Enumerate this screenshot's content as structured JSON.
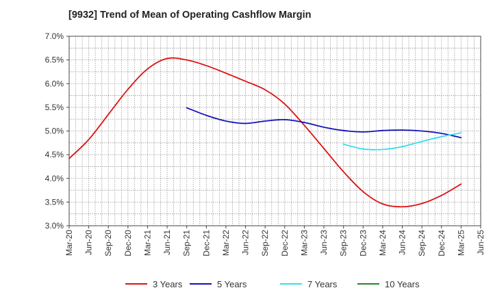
{
  "chart_data": {
    "type": "line",
    "title": "[9932]  Trend of Mean of Operating Cashflow Margin",
    "xlabel": "",
    "ylabel": "",
    "ylim": [
      3.0,
      7.0
    ],
    "y_ticks": [
      "3.0%",
      "3.5%",
      "4.0%",
      "4.5%",
      "5.0%",
      "5.5%",
      "6.0%",
      "6.5%",
      "7.0%"
    ],
    "x_tick_labels": [
      "Mar-20",
      "Jun-20",
      "Sep-20",
      "Dec-20",
      "Mar-21",
      "Jun-21",
      "Sep-21",
      "Dec-21",
      "Mar-22",
      "Jun-22",
      "Sep-22",
      "Dec-22",
      "Mar-23",
      "Jun-23",
      "Sep-23",
      "Dec-23",
      "Mar-24",
      "Jun-24",
      "Sep-24",
      "Dec-24",
      "Mar-25",
      "Jun-25"
    ],
    "x_range_quarters": [
      0,
      21
    ],
    "grid": true,
    "legend_position": "bottom",
    "series": [
      {
        "name": "3 Years",
        "color": "#dd1111",
        "points": [
          [
            "Mar-20",
            4.42
          ],
          [
            "Jun-20",
            4.82
          ],
          [
            "Sep-20",
            5.35
          ],
          [
            "Dec-20",
            5.88
          ],
          [
            "Mar-21",
            6.31
          ],
          [
            "Jun-21",
            6.53
          ],
          [
            "Sep-21",
            6.5
          ],
          [
            "Dec-21",
            6.38
          ],
          [
            "Mar-22",
            6.22
          ],
          [
            "Jun-22",
            6.05
          ],
          [
            "Sep-22",
            5.87
          ],
          [
            "Dec-22",
            5.57
          ],
          [
            "Mar-23",
            5.12
          ],
          [
            "Jun-23",
            4.63
          ],
          [
            "Sep-23",
            4.14
          ],
          [
            "Dec-23",
            3.72
          ],
          [
            "Mar-24",
            3.46
          ],
          [
            "Jun-24",
            3.4
          ],
          [
            "Sep-24",
            3.47
          ],
          [
            "Dec-24",
            3.64
          ],
          [
            "Mar-25",
            3.88
          ]
        ]
      },
      {
        "name": "5 Years",
        "color": "#1111bb",
        "points": [
          [
            "Sep-21",
            5.49
          ],
          [
            "Dec-21",
            5.33
          ],
          [
            "Mar-22",
            5.21
          ],
          [
            "Jun-22",
            5.16
          ],
          [
            "Sep-22",
            5.21
          ],
          [
            "Dec-22",
            5.24
          ],
          [
            "Mar-23",
            5.18
          ],
          [
            "Jun-23",
            5.08
          ],
          [
            "Sep-23",
            5.01
          ],
          [
            "Dec-23",
            4.98
          ],
          [
            "Mar-24",
            5.01
          ],
          [
            "Jun-24",
            5.02
          ],
          [
            "Sep-24",
            5.0
          ],
          [
            "Dec-24",
            4.95
          ],
          [
            "Mar-25",
            4.86
          ]
        ]
      },
      {
        "name": "7 Years",
        "color": "#33ddee",
        "points": [
          [
            "Sep-23",
            4.72
          ],
          [
            "Dec-23",
            4.62
          ],
          [
            "Mar-24",
            4.61
          ],
          [
            "Jun-24",
            4.67
          ],
          [
            "Sep-24",
            4.78
          ],
          [
            "Dec-24",
            4.88
          ],
          [
            "Mar-25",
            4.96
          ]
        ]
      },
      {
        "name": "10 Years",
        "color": "#228822",
        "points": []
      }
    ]
  }
}
